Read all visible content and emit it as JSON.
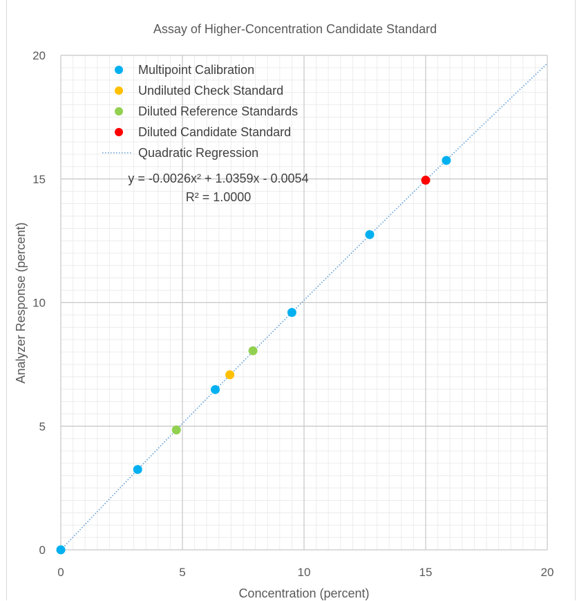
{
  "chart_data": {
    "type": "scatter",
    "title": "Assay of Higher-Concentration Candidate Standard",
    "xlabel": "Concentration (percent)",
    "ylabel": "Analyzer Response (percent)",
    "xlim": [
      0,
      20
    ],
    "ylim": [
      0,
      20
    ],
    "xticks": [
      0,
      5,
      10,
      15,
      20
    ],
    "yticks": [
      0,
      5,
      10,
      15,
      20
    ],
    "minor_grid_step": 0.5,
    "grid": true,
    "legend_position": "top-left",
    "series": [
      {
        "name": "Multipoint Calibration",
        "color": "#00b0f0",
        "points": [
          [
            0,
            0
          ],
          [
            3.16,
            3.25
          ],
          [
            6.35,
            6.48
          ],
          [
            9.5,
            9.6
          ],
          [
            12.7,
            12.75
          ],
          [
            15.85,
            15.75
          ]
        ]
      },
      {
        "name": "Undiluted Check Standard",
        "color": "#ffc000",
        "points": [
          [
            6.95,
            7.08
          ]
        ]
      },
      {
        "name": "Diluted Reference Standards",
        "color": "#92d050",
        "points": [
          [
            4.75,
            4.85
          ],
          [
            7.9,
            8.05
          ]
        ]
      },
      {
        "name": "Diluted Candidate Standard",
        "color": "#ff0000",
        "points": [
          [
            15.0,
            14.95
          ]
        ]
      }
    ],
    "trendline": {
      "name": "Quadratic Regression",
      "color": "#5b9bd5",
      "style": "dotted",
      "coefficients": [
        -0.0026,
        1.0359,
        -0.0054
      ],
      "equation": "y = -0.0026x² + 1.0359x - 0.0054",
      "r_squared": "R² = 1.0000"
    }
  }
}
